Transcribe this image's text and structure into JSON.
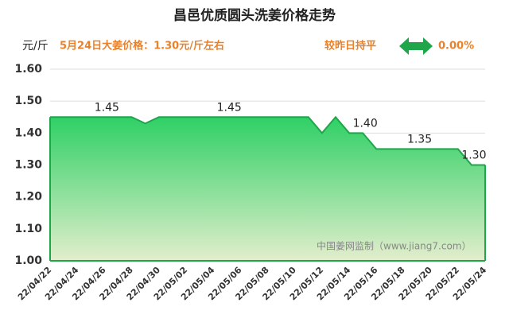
{
  "chart_data": {
    "type": "area",
    "title": "昌邑优质圆头洗姜价格走势",
    "subtitle": "5月24日大姜价格：1.30元/斤左右",
    "y_label": "元/斤",
    "change_label": "较昨日持平",
    "change_value": "0.00%",
    "watermark": "中国姜网监制（www.jiang7.com）",
    "categories": [
      "22/04/22",
      null,
      "22/04/24",
      null,
      "22/04/26",
      null,
      "22/04/28",
      null,
      "22/04/30",
      null,
      "22/05/02",
      null,
      "22/05/04",
      null,
      "22/05/06",
      null,
      "22/05/08",
      null,
      "22/05/10",
      null,
      "22/05/12",
      null,
      "22/05/14",
      null,
      "22/05/16",
      null,
      "22/05/18",
      null,
      "22/05/20",
      null,
      "22/05/22",
      null,
      "22/05/24"
    ],
    "values": [
      1.45,
      1.45,
      1.45,
      1.45,
      1.45,
      1.45,
      1.45,
      1.43,
      1.45,
      1.45,
      1.45,
      1.45,
      1.45,
      1.45,
      1.45,
      1.45,
      1.45,
      1.45,
      1.45,
      1.45,
      1.4,
      1.45,
      1.4,
      1.4,
      1.35,
      1.35,
      1.35,
      1.35,
      1.35,
      1.35,
      1.35,
      1.3,
      1.3
    ],
    "value_labels": [
      null,
      null,
      null,
      null,
      "1.45",
      null,
      null,
      null,
      null,
      null,
      null,
      null,
      null,
      "1.45",
      null,
      null,
      null,
      null,
      null,
      null,
      null,
      null,
      null,
      "1.40",
      null,
      null,
      null,
      "1.35",
      null,
      null,
      null,
      "1.30",
      null
    ],
    "color": "#1fa64a",
    "ylim": [
      1.0,
      1.6
    ],
    "yticks": [
      {
        "value": 1.0,
        "label": "1.00"
      },
      {
        "value": 1.1,
        "label": "1.10"
      },
      {
        "value": 1.2,
        "label": "1.20"
      },
      {
        "value": 1.3,
        "label": "1.30"
      },
      {
        "value": 1.4,
        "label": "1.40"
      },
      {
        "value": 1.5,
        "label": "1.50"
      },
      {
        "value": 1.6,
        "label": "1.60"
      }
    ],
    "grid": true
  }
}
